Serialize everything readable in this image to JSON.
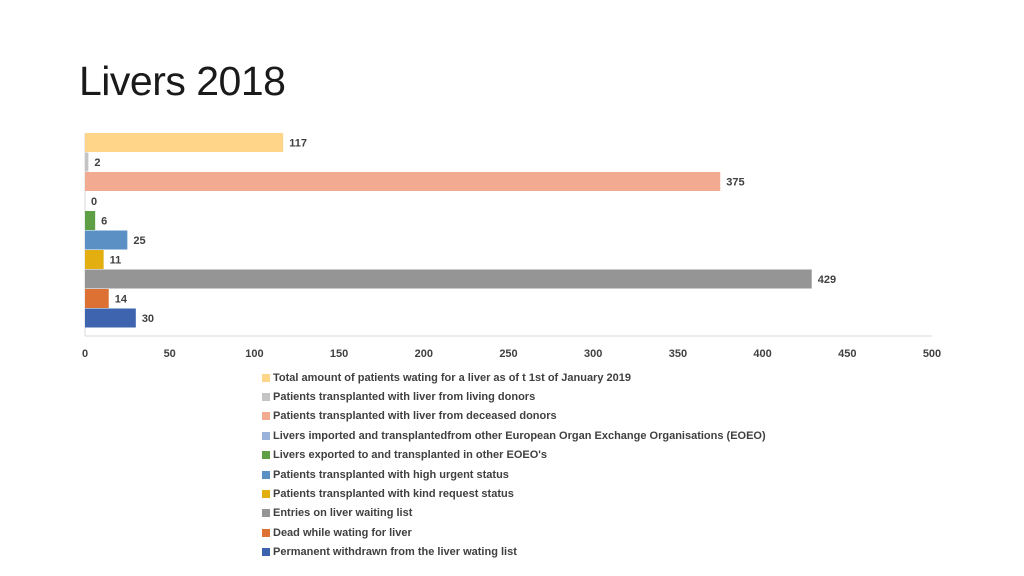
{
  "title": "Livers 2018",
  "chart_data": {
    "type": "bar",
    "orientation": "horizontal",
    "title": "Livers 2018",
    "xlim": [
      0,
      500
    ],
    "x_ticks": [
      0,
      50,
      100,
      150,
      200,
      250,
      300,
      350,
      400,
      450,
      500
    ],
    "legend_position": "bottom",
    "gridlines": false,
    "series": [
      {
        "name": "Total amount of patients wating for a liver as of t 1st of January 2019",
        "value": 117,
        "color": "#FFD58A"
      },
      {
        "name": "Patients transplanted with liver from living donors",
        "value": 2,
        "color": "#C4C4C4"
      },
      {
        "name": "Patients transplanted with liver from deceased donors",
        "value": 375,
        "color": "#F2AB90"
      },
      {
        "name": "Livers imported and transplantedfrom other European Organ Exchange Organisations (EOEO)",
        "value": 0,
        "color": "#9AB1D9"
      },
      {
        "name": "Livers exported to and transplanted in other EOEO's",
        "value": 6,
        "color": "#5FA046"
      },
      {
        "name": "Patients transplanted with high urgent status",
        "value": 25,
        "color": "#5B90C5"
      },
      {
        "name": "Patients transplanted with kind request status",
        "value": 11,
        "color": "#E2AE10"
      },
      {
        "name": "Entries on liver waiting list",
        "value": 429,
        "color": "#959595"
      },
      {
        "name": "Dead while wating for liver",
        "value": 14,
        "color": "#DD7033"
      },
      {
        "name": "Permanent withdrawn from the liver wating list",
        "value": 30,
        "color": "#3E64B0"
      }
    ]
  }
}
